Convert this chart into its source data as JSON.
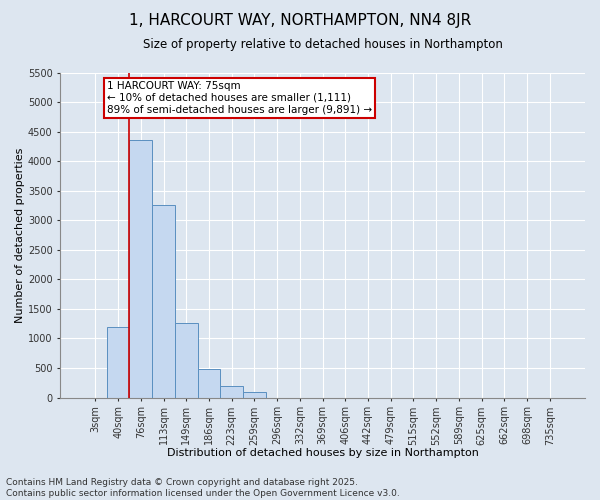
{
  "title": "1, HARCOURT WAY, NORTHAMPTON, NN4 8JR",
  "subtitle": "Size of property relative to detached houses in Northampton",
  "xlabel": "Distribution of detached houses by size in Northampton",
  "ylabel": "Number of detached properties",
  "categories": [
    "3sqm",
    "40sqm",
    "76sqm",
    "113sqm",
    "149sqm",
    "186sqm",
    "223sqm",
    "259sqm",
    "296sqm",
    "332sqm",
    "369sqm",
    "406sqm",
    "442sqm",
    "479sqm",
    "515sqm",
    "552sqm",
    "589sqm",
    "625sqm",
    "662sqm",
    "698sqm",
    "735sqm"
  ],
  "bar_values": [
    0,
    1200,
    4350,
    3250,
    1270,
    480,
    190,
    90,
    0,
    0,
    0,
    0,
    0,
    0,
    0,
    0,
    0,
    0,
    0,
    0,
    0
  ],
  "bar_color": "#c5d8f0",
  "bar_edge_color": "#5a8fc0",
  "property_line_index": 2,
  "property_line_color": "#cc0000",
  "annotation_title": "1 HARCOURT WAY: 75sqm",
  "annotation_line1": "← 10% of detached houses are smaller (1,111)",
  "annotation_line2": "89% of semi-detached houses are larger (9,891) →",
  "annotation_box_color": "#cc0000",
  "ylim": [
    0,
    5500
  ],
  "yticks": [
    0,
    500,
    1000,
    1500,
    2000,
    2500,
    3000,
    3500,
    4000,
    4500,
    5000,
    5500
  ],
  "background_color": "#dde6f0",
  "plot_bg_color": "#dde6f0",
  "grid_color": "#ffffff",
  "footer_line1": "Contains HM Land Registry data © Crown copyright and database right 2025.",
  "footer_line2": "Contains public sector information licensed under the Open Government Licence v3.0.",
  "title_fontsize": 11,
  "subtitle_fontsize": 8.5,
  "tick_fontsize": 7,
  "xlabel_fontsize": 8,
  "ylabel_fontsize": 8,
  "footer_fontsize": 6.5,
  "annotation_fontsize": 7.5
}
